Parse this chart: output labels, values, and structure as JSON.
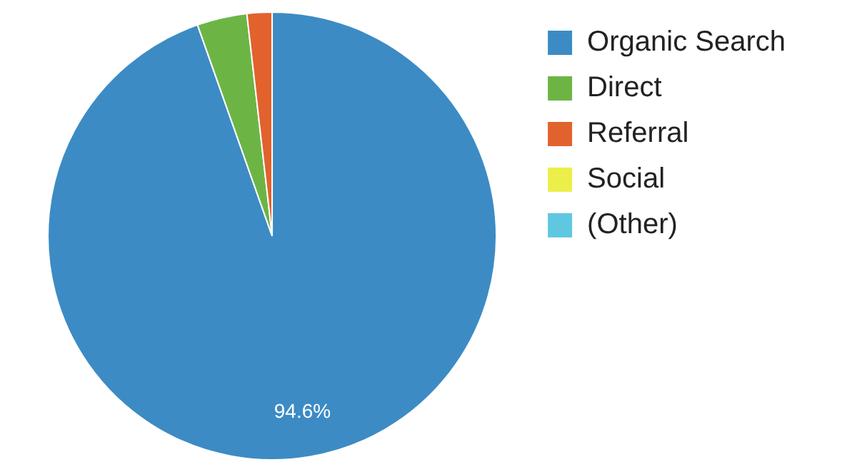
{
  "chart_data": {
    "type": "pie",
    "categories": [
      "Organic Search",
      "Direct",
      "Referral",
      "Social",
      "(Other)"
    ],
    "values": [
      94.6,
      3.6,
      1.8,
      0,
      0
    ],
    "colors": [
      "#3d8bc4",
      "#6cb545",
      "#e2622e",
      "#ecef4a",
      "#5fc8e0"
    ],
    "value_labels": [
      "94.6%",
      null,
      null,
      null,
      null
    ],
    "legend": "right"
  }
}
